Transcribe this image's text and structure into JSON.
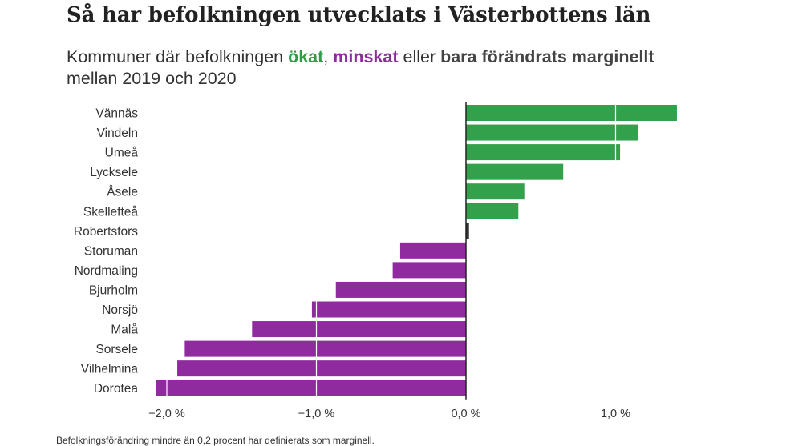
{
  "title": "Så har befolkningen utvecklats i Västerbottens län",
  "subtitle": {
    "part1": "Kommuner där befolkningen ",
    "increased": "ökat",
    "sep": ", ",
    "decreased": "minskat",
    "part2": " eller ",
    "marginal": "bara förändrats marginellt",
    "part3": " mellan 2019 och 2020"
  },
  "colors": {
    "increase": "#33a04b",
    "decrease": "#902a9f",
    "marginal": "#333333"
  },
  "chart_data": {
    "type": "bar",
    "orientation": "horizontal",
    "categories": [
      "Vännäs",
      "Vindeln",
      "Umeå",
      "Lycksele",
      "Åsele",
      "Skellefteå",
      "Robertsfors",
      "Storuman",
      "Nordmaling",
      "Bjurholm",
      "Norsjö",
      "Malå",
      "Sorsele",
      "Vilhelmina",
      "Dorotea"
    ],
    "values": [
      1.41,
      1.15,
      1.03,
      0.65,
      0.39,
      0.35,
      0.02,
      -0.44,
      -0.49,
      -0.87,
      -1.03,
      -1.43,
      -1.88,
      -1.93,
      -2.07
    ],
    "xlim": [
      -2.1,
      1.45
    ],
    "xticks": [
      -2.0,
      -1.0,
      0.0,
      1.0
    ],
    "xtick_labels": [
      "−2,0 %",
      "−1,0 %",
      "0,0 %",
      "1,0 %"
    ],
    "grid": "vertical white lines inside bars",
    "xlabel": "",
    "ylabel": ""
  },
  "footnote": "Befolkningsförändring mindre än 0,2 procent har definierats som marginell."
}
